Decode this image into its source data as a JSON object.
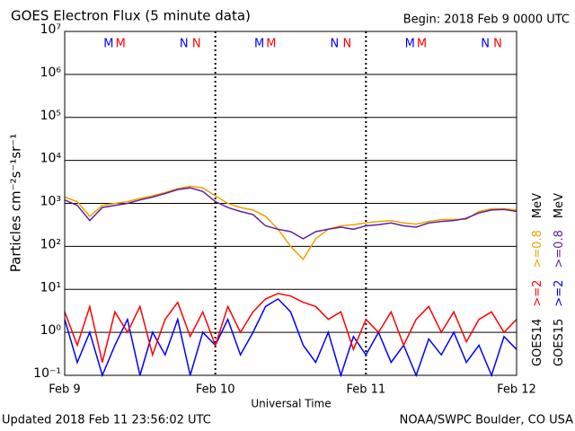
{
  "chart_data": {
    "type": "line",
    "title": "GOES Electron Flux (5 minute data)",
    "subtitle": "Begin: 2018 Feb 9 0000 UTC",
    "footer_left": "Updated 2018 Feb 11 23:56:02 UTC",
    "footer_right": "NOAA/SWPC Boulder, CO USA",
    "xlabel": "Universal Time",
    "ylabel": "Particles cm⁻²s⁻¹sr⁻¹",
    "unit": "MeV",
    "log_y": true,
    "grid": true,
    "threshold": 1000,
    "xlim": [
      0,
      72
    ],
    "xticks": [
      {
        "value": 0,
        "label": "Feb 9"
      },
      {
        "value": 24,
        "label": "Feb 10"
      },
      {
        "value": 48,
        "label": "Feb 11"
      },
      {
        "value": 72,
        "label": "Feb 12"
      }
    ],
    "ylim": [
      0.1,
      10000000
    ],
    "yticks": [
      {
        "value": 0.1,
        "label": "10⁻¹"
      },
      {
        "value": 1,
        "label": "10⁰"
      },
      {
        "value": 10,
        "label": "10¹"
      },
      {
        "value": 100,
        "label": "10²"
      },
      {
        "value": 1000,
        "label": "10³"
      },
      {
        "value": 10000,
        "label": "10⁴"
      },
      {
        "value": 100000,
        "label": "10⁵"
      },
      {
        "value": 1000000,
        "label": "10⁶"
      },
      {
        "value": 10000000,
        "label": "10⁷"
      }
    ],
    "orbit_markers": [
      {
        "text": "M",
        "color": "#0000ff",
        "x": 7
      },
      {
        "text": "M",
        "color": "#ff0000",
        "x": 8.9
      },
      {
        "text": "N",
        "color": "#0000ff",
        "x": 19
      },
      {
        "text": "N",
        "color": "#ff0000",
        "x": 21
      },
      {
        "text": "M",
        "color": "#0000ff",
        "x": 31
      },
      {
        "text": "M",
        "color": "#ff0000",
        "x": 32.9
      },
      {
        "text": "N",
        "color": "#0000ff",
        "x": 43
      },
      {
        "text": "N",
        "color": "#ff0000",
        "x": 45
      },
      {
        "text": "M",
        "color": "#0000ff",
        "x": 55
      },
      {
        "text": "M",
        "color": "#ff0000",
        "x": 56.9
      },
      {
        "text": "N",
        "color": "#0000ff",
        "x": 67
      },
      {
        "text": "N",
        "color": "#ff0000",
        "x": 69
      }
    ],
    "x": [
      0,
      2,
      4,
      6,
      8,
      10,
      12,
      14,
      16,
      18,
      20,
      22,
      24,
      26,
      28,
      30,
      32,
      34,
      36,
      38,
      40,
      42,
      44,
      46,
      48,
      50,
      52,
      54,
      56,
      58,
      60,
      62,
      64,
      66,
      68,
      70,
      72
    ],
    "series": [
      {
        "satellite": "GOES15",
        "energy": ">=2",
        "color": "#0000ff",
        "values": [
          2,
          0.2,
          1,
          0.1,
          0.5,
          2,
          0.1,
          1,
          0.3,
          2,
          0.1,
          1,
          0.5,
          2,
          0.3,
          1,
          4,
          6,
          3,
          0.5,
          0.2,
          1,
          0.1,
          0.8,
          0.3,
          1,
          0.2,
          0.5,
          0.1,
          0.7,
          0.3,
          1,
          0.2,
          0.5,
          0.1,
          0.8,
          0.4
        ]
      },
      {
        "satellite": "GOES14",
        "energy": ">=2",
        "color": "#ff0000",
        "values": [
          3,
          0.5,
          4,
          0.2,
          3,
          1,
          4,
          0.3,
          2,
          5,
          0.8,
          3,
          0.5,
          4,
          1,
          3,
          6,
          8,
          7,
          5,
          4,
          2,
          3,
          0.4,
          2,
          1,
          3,
          0.5,
          2,
          4,
          1,
          3,
          0.6,
          2,
          3,
          1,
          2
        ]
      },
      {
        "satellite": "GOES14",
        "energy": ">=0.8",
        "color": "#f0a000",
        "values": [
          1400,
          1100,
          500,
          900,
          1000,
          1100,
          1300,
          1500,
          1800,
          2200,
          2500,
          2300,
          1500,
          1000,
          800,
          700,
          500,
          250,
          100,
          50,
          150,
          250,
          300,
          320,
          350,
          380,
          400,
          350,
          330,
          380,
          420,
          420,
          430,
          650,
          750,
          750,
          700
        ]
      },
      {
        "satellite": "GOES15",
        "energy": ">=0.8",
        "color": "#6020a0",
        "values": [
          1200,
          900,
          400,
          800,
          900,
          1000,
          1200,
          1400,
          1700,
          2100,
          2300,
          1900,
          1100,
          800,
          650,
          550,
          300,
          250,
          220,
          150,
          220,
          250,
          280,
          250,
          300,
          320,
          350,
          300,
          280,
          350,
          380,
          400,
          450,
          600,
          700,
          720,
          650
        ]
      }
    ]
  }
}
